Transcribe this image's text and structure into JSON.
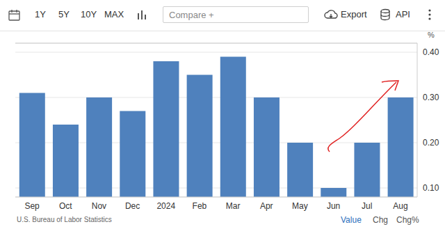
{
  "chart_data": {
    "type": "bar",
    "ylabel": "%",
    "categories": [
      "Sep",
      "Oct",
      "Nov",
      "Dec",
      "2024",
      "Feb",
      "Mar",
      "Apr",
      "May",
      "Jun",
      "Jul",
      "Aug"
    ],
    "values": [
      0.31,
      0.24,
      0.3,
      0.27,
      0.38,
      0.35,
      0.39,
      0.3,
      0.2,
      0.1,
      0.2,
      0.3
    ],
    "color": "#4f81bd",
    "ylim": [
      0.08,
      0.42
    ],
    "yticks": [
      {
        "value": 0.1,
        "label": "0.10"
      },
      {
        "value": 0.2,
        "label": "0.20"
      },
      {
        "value": 0.3,
        "label": "0.30"
      },
      {
        "value": 0.4,
        "label": "0.40"
      }
    ],
    "grid": true
  },
  "toolbar": {
    "ranges": [
      "1Y",
      "5Y",
      "10Y",
      "MAX"
    ],
    "compare": "Compare +",
    "export": "Export",
    "api": "API"
  },
  "footer": {
    "source": "U.S. Bureau of Labor Statistics",
    "modes": [
      "Value",
      "Chg",
      "Chg%"
    ]
  }
}
